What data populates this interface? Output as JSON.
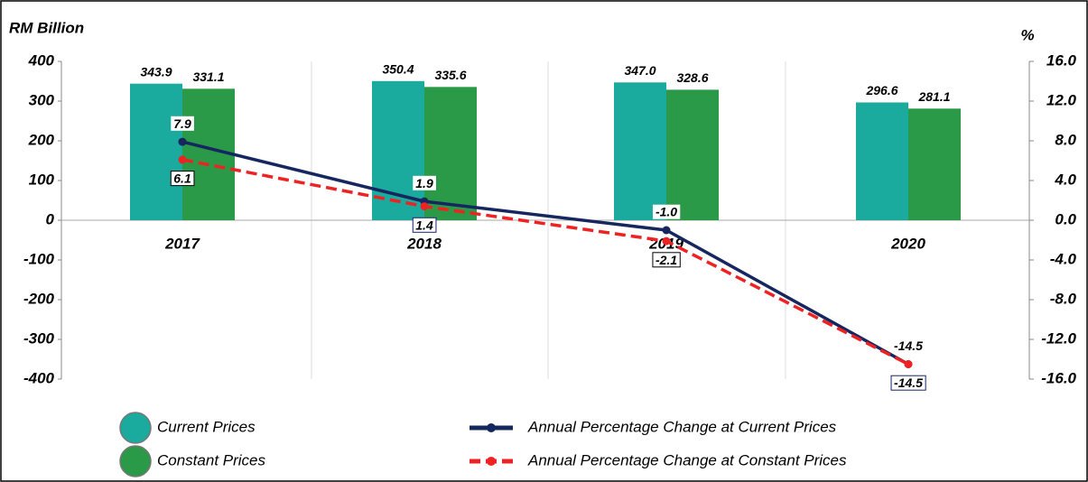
{
  "chart_data": {
    "type": "bar",
    "ylabel": "RM Billion",
    "y2label": "%",
    "categories": [
      "2017",
      "2018",
      "2019",
      "2020"
    ],
    "ylim": [
      -400,
      400
    ],
    "yticks": [
      400,
      300,
      200,
      100,
      0,
      -100,
      -200,
      -300,
      -400
    ],
    "y2lim": [
      -16,
      16
    ],
    "y2ticks": [
      {
        "value": 16,
        "label": "16.0"
      },
      {
        "value": 12,
        "label": "12.0"
      },
      {
        "value": 8,
        "label": "8.0"
      },
      {
        "value": 4,
        "label": "4.0"
      },
      {
        "value": 0,
        "label": "0.0"
      },
      {
        "value": -4,
        "label": "-4.0"
      },
      {
        "value": -8,
        "label": "-8.0"
      },
      {
        "value": -12,
        "label": "-12.0"
      },
      {
        "value": -16,
        "label": "-16.0"
      }
    ],
    "series": [
      {
        "name": "Current Prices",
        "type": "bar",
        "color": "#1aaa9e",
        "values": [
          343.9,
          350.4,
          347.0,
          296.6
        ],
        "value_labels": [
          "343.9",
          "350.4",
          "347.0",
          "296.6"
        ]
      },
      {
        "name": "Constant Prices",
        "type": "bar",
        "color": "#2a9a48",
        "values": [
          331.1,
          335.6,
          328.6,
          281.1
        ],
        "value_labels": [
          "331.1",
          "335.6",
          "328.6",
          "281.1"
        ]
      },
      {
        "name": "Annual Percentage Change at Current Prices",
        "type": "line",
        "axis": "y2",
        "color": "#16265e",
        "dashed": false,
        "values": [
          7.9,
          1.9,
          -1.0,
          -14.5
        ],
        "value_labels": [
          "7.9",
          "1.9",
          "-1.0",
          "-14.5"
        ]
      },
      {
        "name": "Annual Percentage Change at Constant Prices",
        "type": "line",
        "axis": "y2",
        "color": "#ee2222",
        "dashed": true,
        "values": [
          6.1,
          1.4,
          -2.1,
          -14.5
        ],
        "value_labels": [
          "6.1",
          "1.4",
          "-2.1",
          "-14.5"
        ]
      }
    ]
  }
}
